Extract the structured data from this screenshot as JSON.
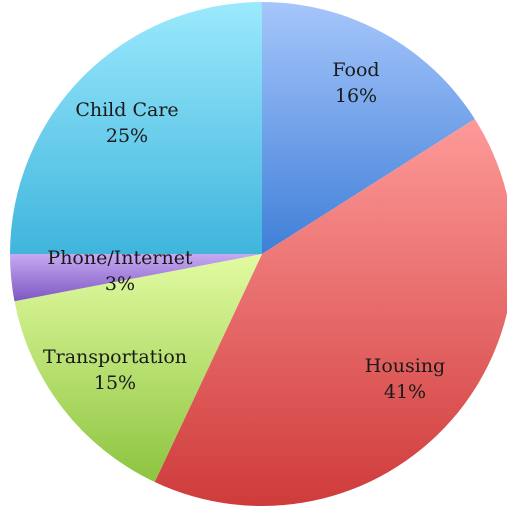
{
  "chart_data": {
    "type": "pie",
    "start_angle_deg": 0,
    "direction": "clockwise",
    "slices": [
      {
        "label": "Food",
        "percent_label": "16%",
        "value": 16,
        "color_light": "#a6c6fb",
        "color_dark": "#3f7fd8"
      },
      {
        "label": "Housing",
        "percent_label": "41%",
        "value": 41,
        "color_light": "#fd9a98",
        "color_dark": "#cf3b3b"
      },
      {
        "label": "Transportation",
        "percent_label": "15%",
        "value": 15,
        "color_light": "#e3fba2",
        "color_dark": "#8cc43f"
      },
      {
        "label": "Phone/Internet",
        "percent_label": "3%",
        "value": 3,
        "color_light": "#c6aaf2",
        "color_dark": "#7d57c2"
      },
      {
        "label": "Child Care",
        "percent_label": "25%",
        "value": 25,
        "color_light": "#9ce9fd",
        "color_dark": "#3fb5dc"
      }
    ]
  }
}
